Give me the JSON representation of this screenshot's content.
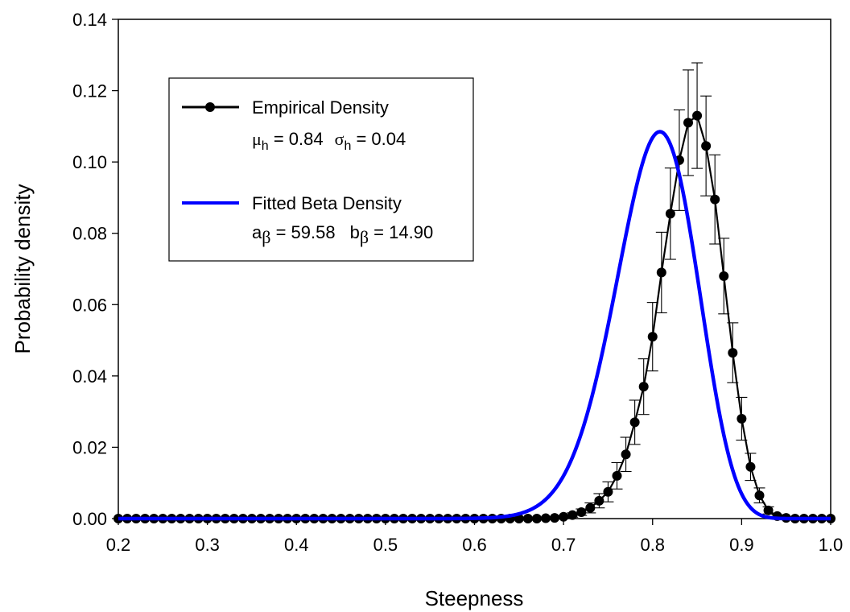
{
  "chart_data": {
    "type": "line",
    "xlabel": "Steepness",
    "ylabel": "Probability density",
    "xlim": [
      0.2,
      1.0
    ],
    "ylim": [
      0.0,
      0.14
    ],
    "xticks": [
      "0.2",
      "0.3",
      "0.4",
      "0.5",
      "0.6",
      "0.7",
      "0.8",
      "0.9",
      "1.0"
    ],
    "yticks": [
      "0.00",
      "0.02",
      "0.04",
      "0.06",
      "0.08",
      "0.10",
      "0.12",
      "0.14"
    ],
    "grid": false,
    "legend_position": "top-left",
    "legend": {
      "empirical_label": "Empirical Density",
      "mu_symbol": "μ",
      "mu_sub": "h",
      "mu_eq": " = 0.84",
      "sigma_symbol": "σ",
      "sigma_sub": "h",
      "sigma_eq": " = 0.04",
      "fitted_label": "Fitted Beta Density",
      "a_symbol": "a",
      "a_sub": "β",
      "a_eq": " = 59.58",
      "b_symbol": "b",
      "b_sub": "β",
      "b_eq": " = 14.90"
    },
    "colors": {
      "empirical": "#000000",
      "fitted": "#0000ff"
    },
    "series": [
      {
        "name": "Empirical Density",
        "marker": "circle",
        "x": [
          0.2,
          0.21,
          0.22,
          0.23,
          0.24,
          0.25,
          0.26,
          0.27,
          0.28,
          0.29,
          0.3,
          0.31,
          0.32,
          0.33,
          0.34,
          0.35,
          0.36,
          0.37,
          0.38,
          0.39,
          0.4,
          0.41,
          0.42,
          0.43,
          0.44,
          0.45,
          0.46,
          0.47,
          0.48,
          0.49,
          0.5,
          0.51,
          0.52,
          0.53,
          0.54,
          0.55,
          0.56,
          0.57,
          0.58,
          0.59,
          0.6,
          0.61,
          0.62,
          0.63,
          0.64,
          0.65,
          0.66,
          0.67,
          0.68,
          0.69,
          0.7,
          0.71,
          0.72,
          0.73,
          0.74,
          0.75,
          0.76,
          0.77,
          0.78,
          0.79,
          0.8,
          0.81,
          0.82,
          0.83,
          0.84,
          0.85,
          0.86,
          0.87,
          0.88,
          0.89,
          0.9,
          0.91,
          0.92,
          0.93,
          0.94,
          0.95,
          0.96,
          0.97,
          0.98,
          0.99,
          1.0
        ],
        "y": [
          0,
          0,
          0,
          0,
          0,
          0,
          0,
          0,
          0,
          0,
          0,
          0,
          0,
          0,
          0,
          0,
          0,
          0,
          0,
          0,
          0,
          0,
          0,
          0,
          0,
          0,
          0,
          0,
          0,
          0,
          0,
          0,
          0,
          0,
          0,
          0,
          0,
          0,
          0,
          0,
          0,
          0,
          0,
          0,
          0,
          0,
          0,
          0,
          0.0001,
          0.0002,
          0.0005,
          0.001,
          0.0018,
          0.003,
          0.005,
          0.0075,
          0.012,
          0.018,
          0.027,
          0.037,
          0.051,
          0.069,
          0.0855,
          0.1005,
          0.111,
          0.113,
          0.1045,
          0.0895,
          0.068,
          0.0465,
          0.028,
          0.0145,
          0.0065,
          0.0023,
          0.0007,
          0.0002,
          0,
          0,
          0,
          0,
          0
        ],
        "error": [
          0,
          0,
          0,
          0,
          0,
          0,
          0,
          0,
          0,
          0,
          0,
          0,
          0,
          0,
          0,
          0,
          0,
          0,
          0,
          0,
          0,
          0,
          0,
          0,
          0,
          0,
          0,
          0,
          0,
          0,
          0,
          0,
          0,
          0,
          0,
          0,
          0,
          0,
          0,
          0,
          0,
          0,
          0,
          0,
          0,
          0,
          0,
          0,
          0,
          0,
          0.0004,
          0.0006,
          0.0009,
          0.0014,
          0.002,
          0.0028,
          0.0037,
          0.0048,
          0.0062,
          0.0078,
          0.0096,
          0.0113,
          0.0128,
          0.0141,
          0.0148,
          0.0148,
          0.014,
          0.0125,
          0.0106,
          0.0084,
          0.006,
          0.0038,
          0.0021,
          0.001,
          0.0004,
          0.0002,
          0,
          0,
          0,
          0,
          0
        ]
      },
      {
        "name": "Fitted Beta Density",
        "distribution": "beta",
        "a": 59.58,
        "b": 14.9,
        "peak": 0.1085
      }
    ]
  }
}
